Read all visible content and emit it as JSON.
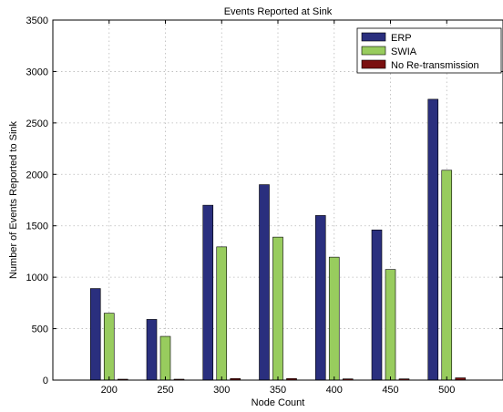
{
  "chart_data": {
    "type": "bar",
    "title": "Events Reported at Sink",
    "xlabel": "Node Count",
    "ylabel": "Number of Events Reported to Sink",
    "categories": [
      "200",
      "250",
      "300",
      "350",
      "400",
      "450",
      "500"
    ],
    "series": [
      {
        "name": "ERP",
        "color": "#2a2f7e",
        "values": [
          890,
          590,
          1700,
          1900,
          1600,
          1460,
          2730
        ]
      },
      {
        "name": "SWIA",
        "color": "#98cc5e",
        "values": [
          650,
          425,
          1295,
          1390,
          1195,
          1075,
          2040
        ]
      },
      {
        "name": "No Re-transmission",
        "color": "#7a1010",
        "values": [
          8,
          5,
          15,
          15,
          12,
          12,
          22
        ]
      }
    ],
    "ylim": [
      0,
      3500
    ],
    "yticks": [
      0,
      500,
      1000,
      1500,
      2000,
      2500,
      3000,
      3500
    ],
    "grid": true,
    "legend_position": "top-right"
  }
}
